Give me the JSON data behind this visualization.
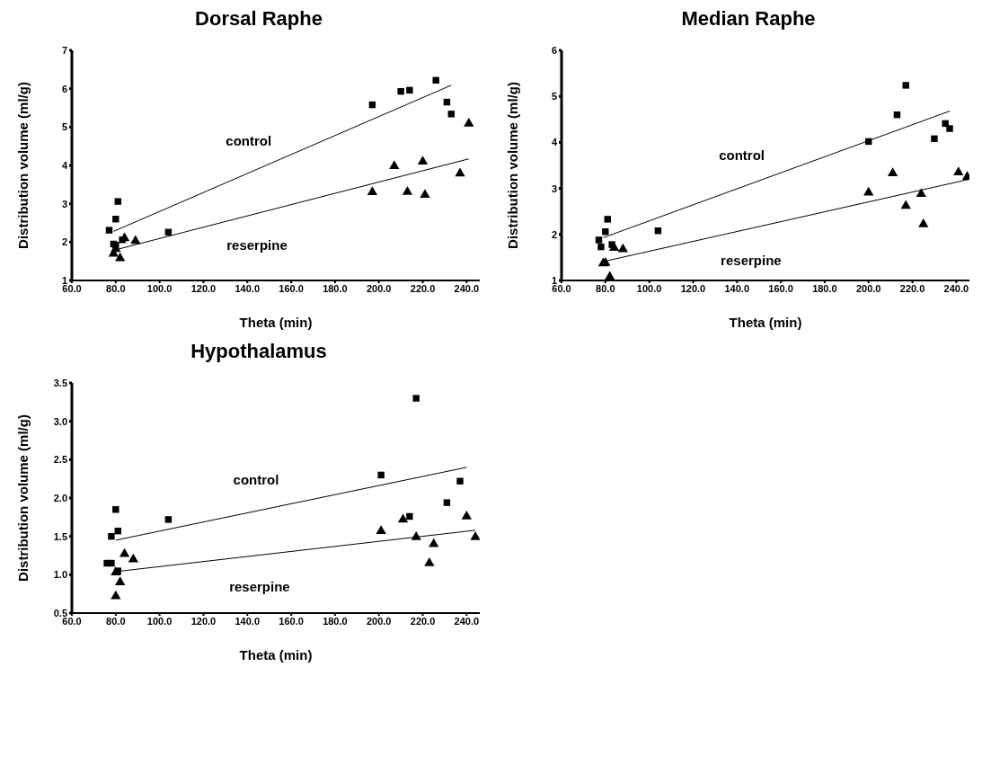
{
  "chart_data": [
    {
      "type": "scatter",
      "title": "Dorsal Raphe",
      "xlabel": "Theta  (min)",
      "ylabel": "Distribution volume (ml/g)",
      "xlim": [
        60,
        246
      ],
      "xticks": [
        {
          "value": 60,
          "label": "60.0"
        },
        {
          "value": 80,
          "label": "80.0"
        },
        {
          "value": 100,
          "label": "100.0"
        },
        {
          "value": 120,
          "label": "120.0"
        },
        {
          "value": 140,
          "label": "140.0"
        },
        {
          "value": 160,
          "label": "160.0"
        },
        {
          "value": 180,
          "label": "180.0"
        },
        {
          "value": 200,
          "label": "200.0"
        },
        {
          "value": 220,
          "label": "220.0"
        },
        {
          "value": 240,
          "label": "240.0"
        }
      ],
      "ylim": [
        1,
        7
      ],
      "yticks": [
        1,
        2,
        3,
        4,
        5,
        6,
        7
      ],
      "series": [
        {
          "marker": "square",
          "color": "#000000",
          "x": [
            77,
            81,
            80,
            79,
            80,
            83,
            104,
            197,
            210,
            214,
            226,
            231,
            233
          ],
          "values": [
            2.31,
            3.06,
            2.6,
            1.95,
            1.92,
            2.06,
            2.26,
            5.58,
            5.93,
            5.96,
            6.22,
            5.65,
            5.34
          ]
        },
        {
          "marker": "triangle",
          "color": "#000000",
          "x": [
            79,
            80,
            82,
            84,
            89,
            197,
            207,
            213,
            220,
            221,
            237,
            241
          ],
          "values": [
            1.7,
            1.82,
            1.58,
            2.1,
            2.03,
            3.3,
            3.98,
            3.31,
            4.1,
            3.23,
            3.79,
            5.09
          ]
        },
        {
          "type": "line",
          "name": "control",
          "color": "#000000",
          "x": [
            79,
            233
          ],
          "values": [
            2.28,
            6.09
          ]
        },
        {
          "type": "line",
          "name": "reserpine",
          "color": "#000000",
          "x": [
            80,
            241
          ],
          "values": [
            1.8,
            4.17
          ]
        }
      ]
    },
    {
      "type": "scatter",
      "title": "Median Raphe",
      "xlabel": "Theta  (min)",
      "ylabel": "Distribution volume (ml/g)",
      "xlim": [
        60,
        246
      ],
      "xticks": [
        {
          "value": 60,
          "label": "60.0"
        },
        {
          "value": 80,
          "label": "80.0"
        },
        {
          "value": 100,
          "label": "100.0"
        },
        {
          "value": 120,
          "label": "120.0"
        },
        {
          "value": 140,
          "label": "140.0"
        },
        {
          "value": 160,
          "label": "160.0"
        },
        {
          "value": 180,
          "label": "180.0"
        },
        {
          "value": 200,
          "label": "200.0"
        },
        {
          "value": 220,
          "label": "220.0"
        },
        {
          "value": 240,
          "label": "240.0"
        }
      ],
      "ylim": [
        1,
        6
      ],
      "yticks": [
        1,
        2,
        3,
        4,
        5,
        6
      ],
      "series": [
        {
          "marker": "square",
          "color": "#000000",
          "x": [
            77,
            78,
            80,
            81,
            83,
            104,
            200,
            213,
            217,
            230,
            235,
            237
          ],
          "values": [
            1.88,
            1.73,
            2.06,
            2.33,
            1.78,
            2.08,
            4.02,
            4.6,
            5.24,
            4.08,
            4.41,
            4.3
          ]
        },
        {
          "marker": "triangle",
          "color": "#000000",
          "x": [
            79,
            80,
            82,
            84,
            88,
            200,
            211,
            217,
            224,
            225,
            241,
            245
          ],
          "values": [
            1.37,
            1.38,
            1.08,
            1.71,
            1.68,
            2.91,
            3.33,
            2.62,
            2.88,
            2.22,
            3.35,
            3.25
          ]
        },
        {
          "type": "line",
          "name": "control",
          "color": "#000000",
          "x": [
            79,
            237
          ],
          "values": [
            1.93,
            4.68
          ]
        },
        {
          "type": "line",
          "name": "reserpine",
          "color": "#000000",
          "x": [
            80,
            246
          ],
          "values": [
            1.42,
            3.2
          ]
        }
      ]
    },
    {
      "type": "scatter",
      "title": "Hypothalamus",
      "xlabel": "Theta  (min)",
      "ylabel": "Distribution volume (ml/g)",
      "xlim": [
        60,
        246
      ],
      "xticks": [
        {
          "value": 60,
          "label": "60.0"
        },
        {
          "value": 80,
          "label": "80.0"
        },
        {
          "value": 100,
          "label": "100.0"
        },
        {
          "value": 120,
          "label": "120.0"
        },
        {
          "value": 140,
          "label": "140.0"
        },
        {
          "value": 160,
          "label": "160.0"
        },
        {
          "value": 180,
          "label": "180.0"
        },
        {
          "value": 200,
          "label": "200.0"
        },
        {
          "value": 220,
          "label": "220.0"
        },
        {
          "value": 240,
          "label": "240.0"
        }
      ],
      "ylim": [
        0.5,
        3.5
      ],
      "yticks": [
        0.5,
        {
          "value": 1,
          "label": "1.0"
        },
        1.5,
        {
          "value": 2,
          "label": "2.0"
        },
        2.5,
        {
          "value": 3,
          "label": "3.0"
        },
        3.5
      ],
      "series": [
        {
          "marker": "square",
          "color": "#000000",
          "x": [
            76,
            78,
            78,
            80,
            81,
            81,
            104,
            201,
            214,
            217,
            231,
            237
          ],
          "values": [
            1.15,
            1.15,
            1.5,
            1.85,
            1.57,
            1.05,
            1.72,
            2.3,
            1.76,
            3.3,
            1.94,
            2.22
          ]
        },
        {
          "marker": "triangle",
          "color": "#000000",
          "x": [
            80,
            80,
            82,
            84,
            88,
            201,
            211,
            217,
            223,
            225,
            240,
            244
          ],
          "values": [
            1.03,
            0.72,
            0.9,
            1.27,
            1.2,
            1.57,
            1.72,
            1.49,
            1.15,
            1.4,
            1.76,
            1.49
          ]
        },
        {
          "type": "line",
          "name": "control",
          "color": "#000000",
          "x": [
            80,
            240
          ],
          "values": [
            1.45,
            2.4
          ]
        },
        {
          "type": "line",
          "name": "reserpine",
          "color": "#000000",
          "x": [
            80,
            244
          ],
          "values": [
            1.04,
            1.58
          ]
        }
      ]
    }
  ]
}
